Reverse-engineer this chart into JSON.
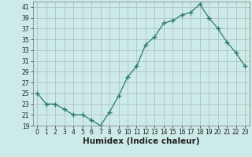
{
  "x": [
    0,
    1,
    2,
    3,
    4,
    5,
    6,
    7,
    8,
    9,
    10,
    11,
    12,
    13,
    14,
    15,
    16,
    17,
    18,
    19,
    20,
    21,
    22,
    23
  ],
  "y": [
    25,
    23,
    23,
    22,
    21,
    21,
    20,
    19,
    21.5,
    24.5,
    28,
    30,
    34,
    35.5,
    38,
    38.5,
    39.5,
    40,
    41.5,
    39,
    37,
    34.5,
    32.5,
    30
  ],
  "line_color": "#2d7a6a",
  "marker": "+",
  "marker_size": 4,
  "bg_color": "#cceae8",
  "grid_color": "#aabcbb",
  "xlabel": "Humidex (Indice chaleur)",
  "ylim": [
    19,
    42
  ],
  "xlim": [
    -0.5,
    23.5
  ],
  "yticks": [
    19,
    21,
    23,
    25,
    27,
    29,
    31,
    33,
    35,
    37,
    39,
    41
  ],
  "xtick_labels": [
    "0",
    "1",
    "2",
    "3",
    "4",
    "5",
    "6",
    "7",
    "8",
    "9",
    "10",
    "11",
    "12",
    "13",
    "14",
    "15",
    "16",
    "17",
    "18",
    "19",
    "20",
    "21",
    "22",
    "23"
  ],
  "font_color": "#222222",
  "tick_fontsize": 5.5,
  "label_fontsize": 7.5
}
